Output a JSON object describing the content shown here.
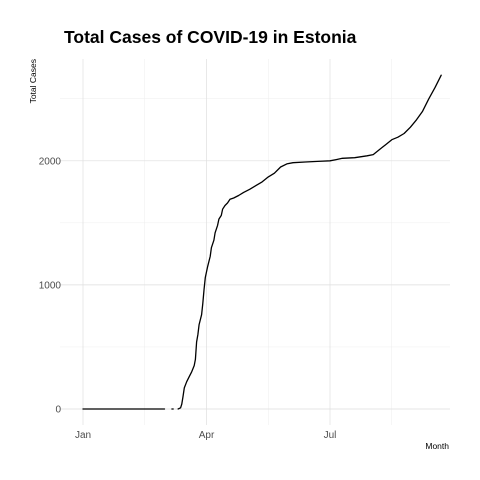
{
  "chart_data": {
    "type": "line",
    "title": "Total Cases of COVID-19 in Estonia",
    "xlabel": "Month",
    "ylabel": "Total Cases",
    "x_axis": {
      "min": 0,
      "max": 300,
      "major_ticks": [
        {
          "day": 0,
          "label": "Jan"
        },
        {
          "day": 100,
          "label": "Apr"
        },
        {
          "day": 200,
          "label": "Jul"
        }
      ],
      "minor_ticks": [
        50,
        150,
        250
      ]
    },
    "y_axis": {
      "min": -150,
      "max": 2820,
      "major_ticks": [
        0,
        1000,
        2000
      ],
      "minor_ticks": [
        500,
        1500,
        2500
      ]
    },
    "grid": true,
    "series": [
      {
        "name": "Total Cases",
        "segments": [
          [
            [
              0,
              0
            ],
            [
              66,
              0
            ]
          ],
          [
            [
              72,
              0
            ],
            [
              73,
              0
            ]
          ],
          [
            [
              77,
              0
            ],
            [
              79,
              10
            ],
            [
              80,
              40
            ],
            [
              81,
              100
            ],
            [
              82,
              170
            ],
            [
              84,
              220
            ],
            [
              86,
              260
            ],
            [
              88,
              300
            ],
            [
              90,
              350
            ],
            [
              91,
              400
            ],
            [
              92,
              540
            ],
            [
              93,
              600
            ],
            [
              94,
              680
            ],
            [
              96,
              760
            ],
            [
              97,
              850
            ],
            [
              98,
              960
            ],
            [
              99,
              1060
            ],
            [
              101,
              1150
            ],
            [
              103,
              1230
            ],
            [
              104,
              1300
            ],
            [
              106,
              1360
            ],
            [
              107,
              1420
            ],
            [
              109,
              1480
            ],
            [
              110,
              1530
            ],
            [
              112,
              1560
            ],
            [
              113,
              1610
            ],
            [
              115,
              1640
            ],
            [
              117,
              1660
            ],
            [
              119,
              1690
            ],
            [
              122,
              1700
            ],
            [
              126,
              1720
            ],
            [
              130,
              1745
            ],
            [
              135,
              1770
            ],
            [
              140,
              1800
            ],
            [
              145,
              1830
            ],
            [
              150,
              1870
            ],
            [
              155,
              1900
            ],
            [
              160,
              1950
            ],
            [
              165,
              1975
            ],
            [
              170,
              1985
            ],
            [
              180,
              1990
            ],
            [
              190,
              1995
            ],
            [
              200,
              2000
            ],
            [
              205,
              2010
            ],
            [
              210,
              2020
            ],
            [
              220,
              2025
            ],
            [
              230,
              2040
            ],
            [
              235,
              2050
            ],
            [
              240,
              2090
            ],
            [
              245,
              2130
            ],
            [
              250,
              2170
            ],
            [
              255,
              2190
            ],
            [
              260,
              2220
            ],
            [
              265,
              2270
            ],
            [
              270,
              2330
            ],
            [
              275,
              2400
            ],
            [
              280,
              2500
            ],
            [
              285,
              2590
            ],
            [
              290,
              2690
            ]
          ]
        ]
      }
    ]
  }
}
